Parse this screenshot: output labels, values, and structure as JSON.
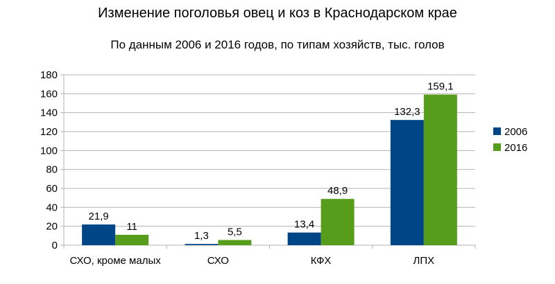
{
  "chart_data": {
    "type": "bar",
    "title": "Изменение поголовья овец и коз в Краснодарском крае",
    "subtitle": "По данным 2006 и 2016 годов, по типам хозяйств, тыс. голов",
    "categories": [
      "СХО, кроме малых",
      "СХО",
      "КФХ",
      "ЛПХ"
    ],
    "series": [
      {
        "name": "2006",
        "values": [
          21.9,
          1.3,
          13.4,
          132.3
        ],
        "labels": [
          "21,9",
          "1,3",
          "13,4",
          "132,3"
        ],
        "color": "#004586"
      },
      {
        "name": "2016",
        "values": [
          11,
          5.5,
          48.9,
          159.1
        ],
        "labels": [
          "11",
          "5,5",
          "48,9",
          "159,1"
        ],
        "color": "#579d1c"
      }
    ],
    "ylim": [
      0,
      180
    ],
    "yticks": [
      0,
      20,
      40,
      60,
      80,
      100,
      120,
      140,
      160,
      180
    ],
    "grid": true,
    "legend_position": "right",
    "gridline_color": "#b3b3b3"
  }
}
